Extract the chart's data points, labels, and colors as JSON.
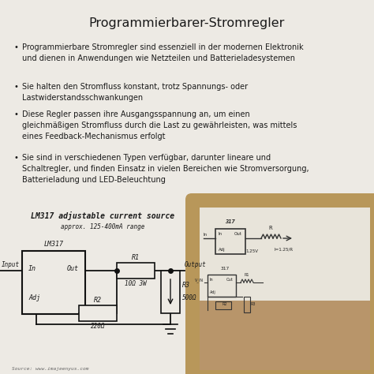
{
  "title": "Programmierbarer-Stromregler",
  "bg_color": "#edeae4",
  "title_color": "#222222",
  "title_fontsize": 11.5,
  "bullet_points": [
    "Programmierbare Stromregler sind essenziell in der modernen Elektronik\nund dienen in Anwendungen wie Netzteilen und Batterieladesystemen",
    "Sie halten den Stromfluss konstant, trotz Spannungs- oder\nLastwiderstandsschwankungen",
    "Diese Regler passen ihre Ausgangsspannung an, um einen\ngleichmäßigen Stromfluss durch die Last zu gewährleisten, was mittels\neines Feedback-Mechanismus erfolgt",
    "Sie sind in verschiedenen Typen verfügbar, darunter lineare und\nSchaltregler, und finden Einsatz in vielen Bereichen wie Stromversorgung,\nBatterieladung und LED-Beleuchtung"
  ],
  "bullet_fontsize": 7.0,
  "circuit_title": "LM317 adjustable current source",
  "circuit_subtitle": "approx. 125-400mA range",
  "source_text": "Source: www.imajeenyus.com",
  "text_color": "#1a1a1a",
  "wire_color": "#111111",
  "circuit_bg": "#edeae4",
  "photo_bg_outer": "#b8975a",
  "photo_bg_paper": "#ddd8c8",
  "photo_bg_hand": "#c8a070"
}
